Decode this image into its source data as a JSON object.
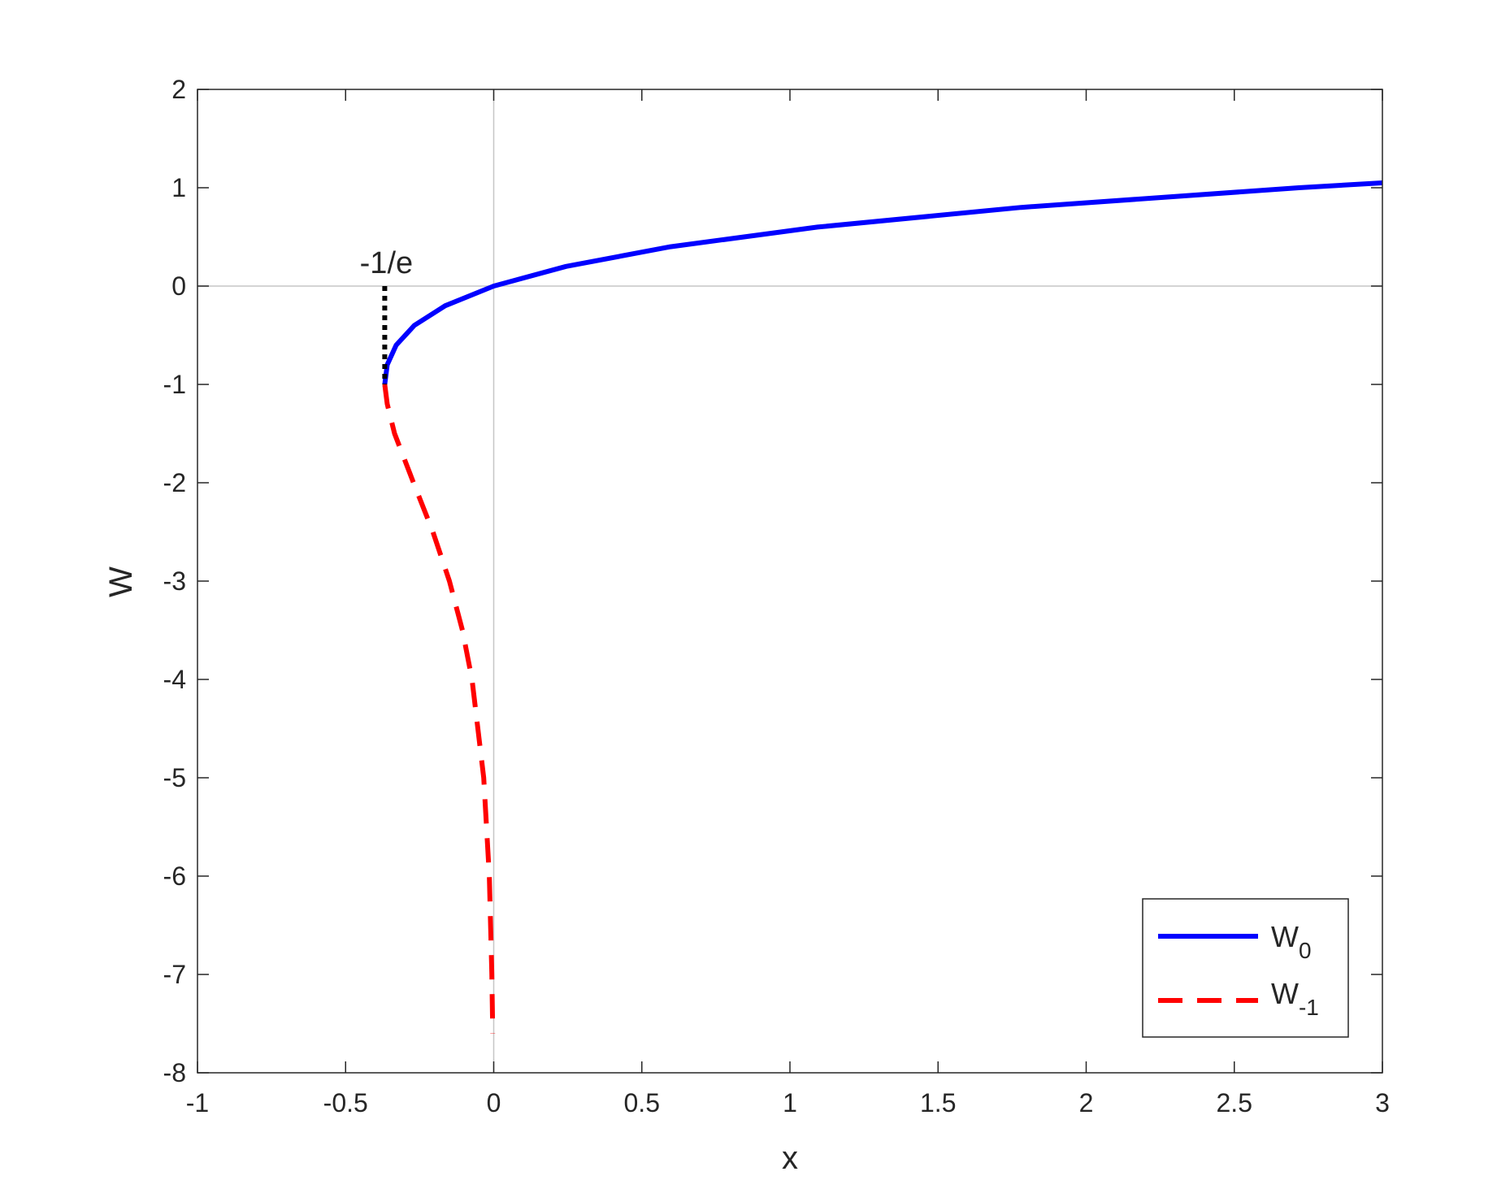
{
  "chart_data": {
    "type": "line",
    "title": "",
    "xlabel": "x",
    "ylabel": "W",
    "xlim": [
      -1,
      3
    ],
    "ylim": [
      -8,
      2
    ],
    "x_ticks": [
      -1,
      -0.5,
      0,
      0.5,
      1,
      1.5,
      2,
      2.5,
      3
    ],
    "x_tick_labels": [
      "-1",
      "-0.5",
      "0",
      "0.5",
      "1",
      "1.5",
      "2",
      "2.5",
      "3"
    ],
    "y_ticks": [
      2,
      1,
      0,
      -1,
      -2,
      -3,
      -4,
      -5,
      -6,
      -7,
      -8
    ],
    "y_tick_labels": [
      "2",
      "1",
      "0",
      "-1",
      "-2",
      "-3",
      "-4",
      "-5",
      "-6",
      "-7",
      "-8"
    ],
    "grid": false,
    "zero_lines": true,
    "legend_position": "bottom-right",
    "series": [
      {
        "name": "W",
        "name_subscript": "0",
        "color": "#0000ff",
        "style": "solid",
        "points": [
          [
            -0.3679,
            -1.0
          ],
          [
            -0.3595,
            -0.8
          ],
          [
            -0.3293,
            -0.6
          ],
          [
            -0.2681,
            -0.4
          ],
          [
            -0.1637,
            -0.2
          ],
          [
            0.0,
            0.0
          ],
          [
            0.2443,
            0.2
          ],
          [
            0.5967,
            0.4
          ],
          [
            1.0933,
            0.6
          ],
          [
            1.7804,
            0.8
          ],
          [
            2.7183,
            1.0
          ],
          [
            3.0,
            1.0499
          ]
        ]
      },
      {
        "name": "W",
        "name_subscript": "-1",
        "color": "#ff0000",
        "style": "dashed",
        "points": [
          [
            -0.3679,
            -1.0
          ],
          [
            -0.3595,
            -1.2
          ],
          [
            -0.3347,
            -1.5
          ],
          [
            -0.2707,
            -2.0
          ],
          [
            -0.2052,
            -2.5
          ],
          [
            -0.1494,
            -3.0
          ],
          [
            -0.1057,
            -3.5
          ],
          [
            -0.0733,
            -4.0
          ],
          [
            -0.0337,
            -5.0
          ],
          [
            -0.0149,
            -6.0
          ],
          [
            -0.0064,
            -7.0
          ],
          [
            -0.0034,
            -7.6
          ]
        ]
      }
    ],
    "annotations": [
      {
        "text": "-1/e",
        "x": -0.3679,
        "y": 0,
        "color": "#000000",
        "style": "dotted vertical segment from W=0 to W=-1"
      }
    ]
  }
}
